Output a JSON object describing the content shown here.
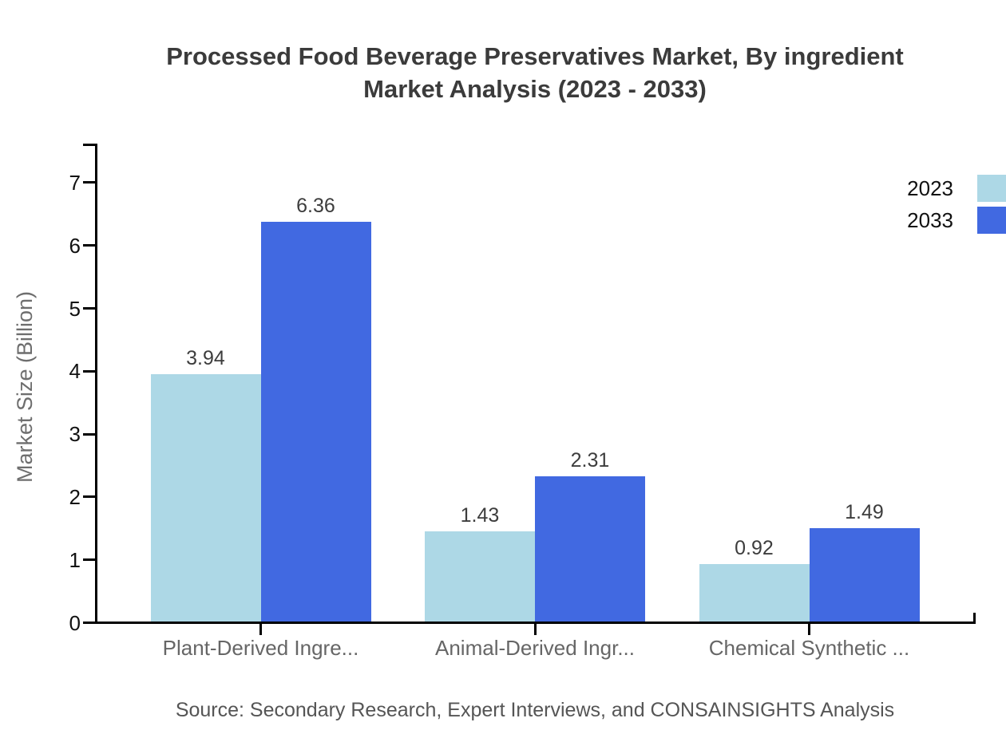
{
  "header": {
    "title_line1": "Processed Food Beverage Preservatives Market, By ingredient",
    "title_line2": "Market Analysis (2023 - 2033)"
  },
  "source_note": "Source: Secondary Research, Expert Interviews, and CONSAINSIGHTS Analysis",
  "chart_data": {
    "type": "bar",
    "title": "Processed Food Beverage Preservatives Market, By ingredient Market Analysis (2023 - 2033)",
    "categories": [
      "Plant-Derived Ingre...",
      "Animal-Derived Ingr...",
      "Chemical Synthetic ..."
    ],
    "series": [
      {
        "name": "2023",
        "color": "#ADD8E6",
        "values": [
          3.94,
          1.43,
          0.92
        ]
      },
      {
        "name": "2033",
        "color": "#4169E1",
        "values": [
          6.36,
          2.31,
          1.49
        ]
      }
    ],
    "value_labels": [
      "3.94",
      "6.36",
      "1.43",
      "2.31",
      "0.92",
      "1.49"
    ],
    "ylabel": "Market Size (Billion)",
    "xlabel": "",
    "ylim": [
      0,
      7.6
    ],
    "yticks": [
      0,
      1,
      2,
      3,
      4,
      5,
      6,
      7
    ],
    "grid": false,
    "legend_position": "top-right",
    "background": "#ffffff",
    "axis_color": "#000000"
  }
}
